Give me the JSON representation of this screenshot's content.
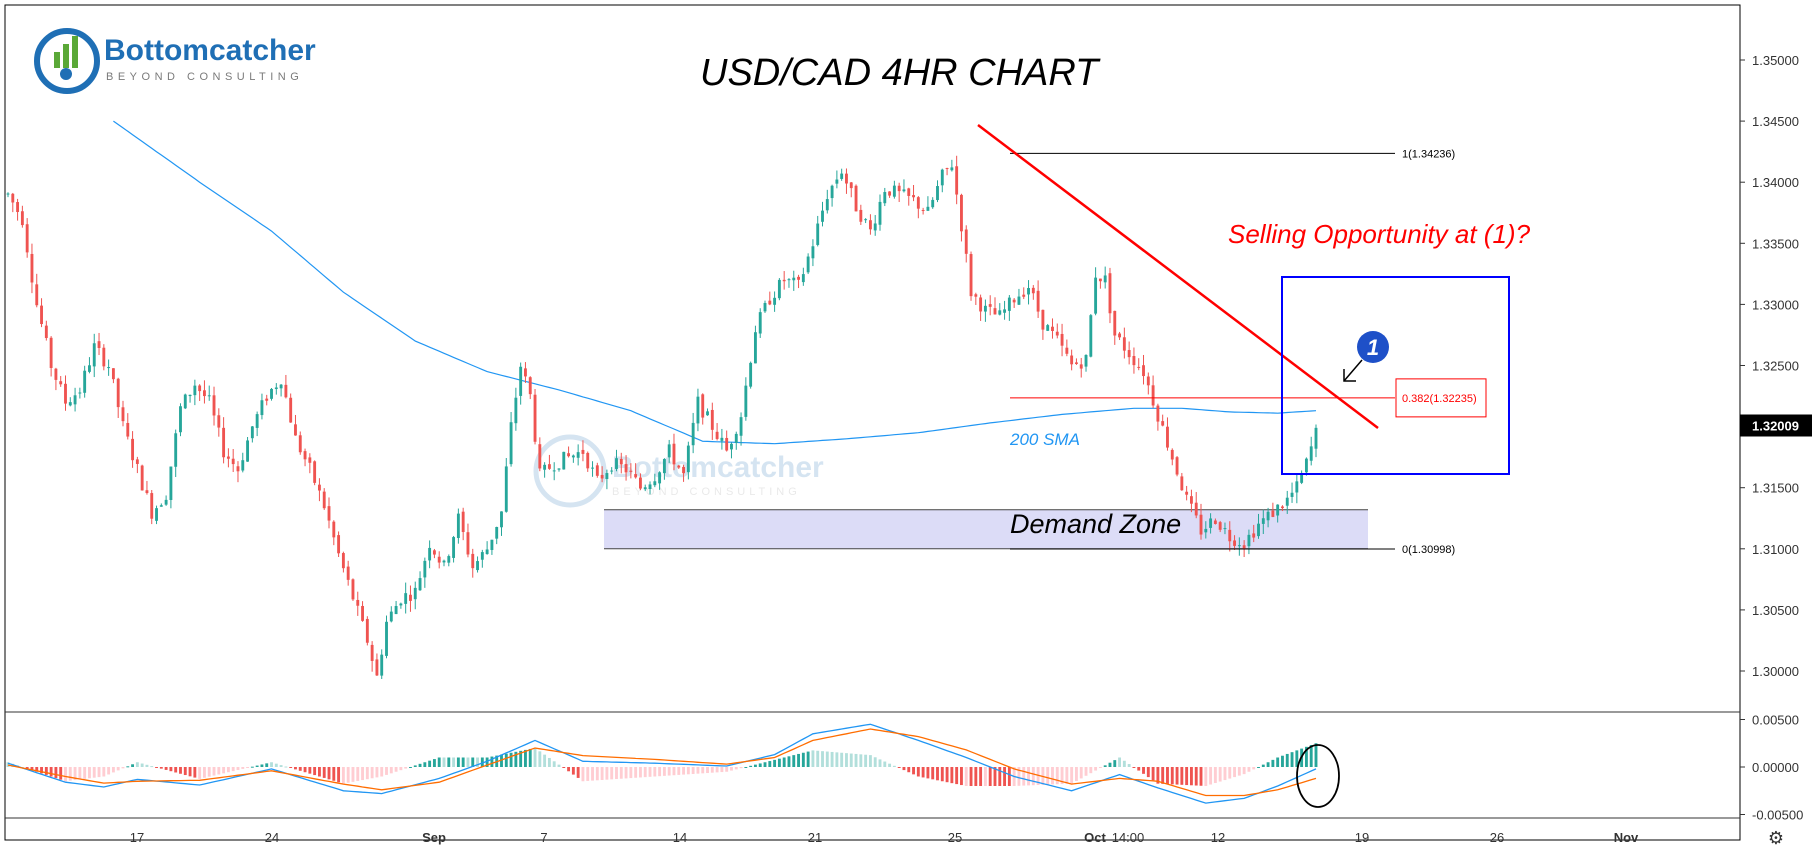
{
  "title": "USD/CAD 4HR CHART",
  "logo": {
    "name": "Bottomcatcher",
    "tagline": "BEYOND CONSULTING"
  },
  "annotations": {
    "selling": "Selling Opportunity at (1)?",
    "demand": "Demand Zone",
    "sma_label": "200 SMA",
    "marker": "1",
    "fib_top": "1(1.34236)",
    "fib_mid": "0.382(1.32235)",
    "fib_bottom": "0(1.30998)"
  },
  "colors": {
    "up": "#26a69a",
    "down": "#ef5350",
    "sma": "#2196f3",
    "trendline": "#ff0000",
    "box": "#0000ff",
    "demand_fill": "#d8d8f6",
    "macd": "#2196f3",
    "signal": "#ff6d00"
  },
  "chart_data": {
    "type": "candlestick",
    "instrument": "USD/CAD",
    "timeframe": "4HR",
    "y_ticks": [
      "1.35000",
      "1.34500",
      "1.34000",
      "1.33500",
      "1.33000",
      "1.32500",
      "1.32000",
      "1.31500",
      "1.31000",
      "1.30500",
      "1.30000"
    ],
    "ylim": [
      1.2935,
      1.3525
    ],
    "current_price": "1.32009",
    "x_ticks": [
      "17",
      "24",
      "Sep",
      "7",
      "14",
      "21",
      "25",
      "Oct",
      "14:00",
      "12",
      "19",
      "26",
      "Nov"
    ],
    "price_path": [
      [
        0,
        1.339
      ],
      [
        3,
        1.337
      ],
      [
        6,
        1.33
      ],
      [
        9,
        1.325
      ],
      [
        12,
        1.322
      ],
      [
        15,
        1.323
      ],
      [
        18,
        1.3265
      ],
      [
        21,
        1.325
      ],
      [
        24,
        1.32
      ],
      [
        27,
        1.3165
      ],
      [
        30,
        1.313
      ],
      [
        33,
        1.3145
      ],
      [
        36,
        1.3215
      ],
      [
        39,
        1.3235
      ],
      [
        42,
        1.322
      ],
      [
        45,
        1.318
      ],
      [
        48,
        1.3165
      ],
      [
        51,
        1.32
      ],
      [
        54,
        1.3225
      ],
      [
        57,
        1.324
      ],
      [
        60,
        1.319
      ],
      [
        63,
        1.3165
      ],
      [
        66,
        1.3135
      ],
      [
        69,
        1.3095
      ],
      [
        72,
        1.306
      ],
      [
        75,
        1.3025
      ],
      [
        77,
        1.2995
      ],
      [
        79,
        1.304
      ],
      [
        82,
        1.306
      ],
      [
        85,
        1.3065
      ],
      [
        88,
        1.3105
      ],
      [
        91,
        1.3085
      ],
      [
        94,
        1.3125
      ],
      [
        97,
        1.3085
      ],
      [
        100,
        1.31
      ],
      [
        103,
        1.313
      ],
      [
        105,
        1.32
      ],
      [
        107,
        1.325
      ],
      [
        109,
        1.3225
      ],
      [
        111,
        1.316
      ],
      [
        114,
        1.317
      ],
      [
        117,
        1.3175
      ],
      [
        120,
        1.318
      ],
      [
        123,
        1.3155
      ],
      [
        126,
        1.317
      ],
      [
        129,
        1.3165
      ],
      [
        132,
        1.315
      ],
      [
        135,
        1.316
      ],
      [
        138,
        1.318
      ],
      [
        141,
        1.316
      ],
      [
        144,
        1.322
      ],
      [
        147,
        1.32
      ],
      [
        150,
        1.318
      ],
      [
        153,
        1.321
      ],
      [
        156,
        1.328
      ],
      [
        159,
        1.3305
      ],
      [
        162,
        1.332
      ],
      [
        165,
        1.3315
      ],
      [
        168,
        1.335
      ],
      [
        171,
        1.339
      ],
      [
        174,
        1.341
      ],
      [
        177,
        1.338
      ],
      [
        180,
        1.336
      ],
      [
        183,
        1.3395
      ],
      [
        186,
        1.339
      ],
      [
        189,
        1.3385
      ],
      [
        192,
        1.3375
      ],
      [
        195,
        1.3405
      ],
      [
        197,
        1.3415
      ],
      [
        199,
        1.3365
      ],
      [
        201,
        1.331
      ],
      [
        204,
        1.3295
      ],
      [
        207,
        1.329
      ],
      [
        210,
        1.3305
      ],
      [
        213,
        1.3315
      ],
      [
        216,
        1.3285
      ],
      [
        219,
        1.327
      ],
      [
        222,
        1.325
      ],
      [
        225,
        1.3255
      ],
      [
        227,
        1.3325
      ],
      [
        229,
        1.332
      ],
      [
        231,
        1.3275
      ],
      [
        234,
        1.326
      ],
      [
        237,
        1.3245
      ],
      [
        240,
        1.321
      ],
      [
        243,
        1.3175
      ],
      [
        246,
        1.314
      ],
      [
        249,
        1.3115
      ],
      [
        252,
        1.3125
      ],
      [
        255,
        1.311
      ],
      [
        258,
        1.3105
      ],
      [
        261,
        1.312
      ],
      [
        264,
        1.313
      ],
      [
        267,
        1.314
      ],
      [
        269,
        1.315
      ],
      [
        271,
        1.317
      ],
      [
        273,
        1.3195
      ]
    ],
    "sma200_path": [
      [
        22,
        1.345
      ],
      [
        40,
        1.34
      ],
      [
        55,
        1.336
      ],
      [
        70,
        1.331
      ],
      [
        85,
        1.327
      ],
      [
        100,
        1.3245
      ],
      [
        115,
        1.323
      ],
      [
        130,
        1.3213
      ],
      [
        145,
        1.3188
      ],
      [
        160,
        1.3186
      ],
      [
        175,
        1.319
      ],
      [
        190,
        1.3195
      ],
      [
        205,
        1.3203
      ],
      [
        220,
        1.321
      ],
      [
        235,
        1.3215
      ],
      [
        245,
        1.3215
      ],
      [
        255,
        1.3212
      ],
      [
        265,
        1.3211
      ],
      [
        273,
        1.3213
      ]
    ],
    "macd_ylim": [
      -0.0052,
      0.0058
    ],
    "macd_ticks": [
      "0.00500",
      "0.00000",
      "-0.00500"
    ],
    "macd_path": [
      [
        0,
        0.0004
      ],
      [
        12,
        -0.0016
      ],
      [
        20,
        -0.0021
      ],
      [
        27,
        -0.0013
      ],
      [
        40,
        -0.0019
      ],
      [
        55,
        -0.0002
      ],
      [
        70,
        -0.0025
      ],
      [
        78,
        -0.0028
      ],
      [
        90,
        -0.0012
      ],
      [
        100,
        0.0006
      ],
      [
        110,
        0.0028
      ],
      [
        120,
        0.0006
      ],
      [
        135,
        0.0004
      ],
      [
        150,
        0.0001
      ],
      [
        160,
        0.0013
      ],
      [
        168,
        0.0035
      ],
      [
        180,
        0.0045
      ],
      [
        190,
        0.0028
      ],
      [
        200,
        0.001
      ],
      [
        210,
        -0.001
      ],
      [
        222,
        -0.0025
      ],
      [
        232,
        -0.0008
      ],
      [
        240,
        -0.0022
      ],
      [
        250,
        -0.0038
      ],
      [
        258,
        -0.0033
      ],
      [
        265,
        -0.002
      ],
      [
        273,
        -0.0002
      ]
    ],
    "signal_path": [
      [
        0,
        0.0002
      ],
      [
        12,
        -0.001
      ],
      [
        20,
        -0.0017
      ],
      [
        27,
        -0.0015
      ],
      [
        40,
        -0.0014
      ],
      [
        55,
        -0.0004
      ],
      [
        70,
        -0.0018
      ],
      [
        78,
        -0.0024
      ],
      [
        90,
        -0.0016
      ],
      [
        100,
        0.0002
      ],
      [
        110,
        0.002
      ],
      [
        120,
        0.0012
      ],
      [
        135,
        0.0008
      ],
      [
        150,
        0.0003
      ],
      [
        160,
        0.001
      ],
      [
        168,
        0.0028
      ],
      [
        180,
        0.004
      ],
      [
        190,
        0.0032
      ],
      [
        200,
        0.0018
      ],
      [
        210,
        -0.0002
      ],
      [
        222,
        -0.0018
      ],
      [
        232,
        -0.0012
      ],
      [
        240,
        -0.0015
      ],
      [
        250,
        -0.003
      ],
      [
        258,
        -0.003
      ],
      [
        265,
        -0.0024
      ],
      [
        273,
        -0.0012
      ]
    ],
    "levels": {
      "fib_1": 1.34236,
      "fib_0382": 1.32235,
      "fib_0": 1.30998,
      "demand_top": 1.3132,
      "demand_bottom": 1.31
    },
    "trendline": [
      [
        1.3447,
        "Sep 30"
      ],
      [
        1.321,
        "Oct 18"
      ]
    ]
  }
}
